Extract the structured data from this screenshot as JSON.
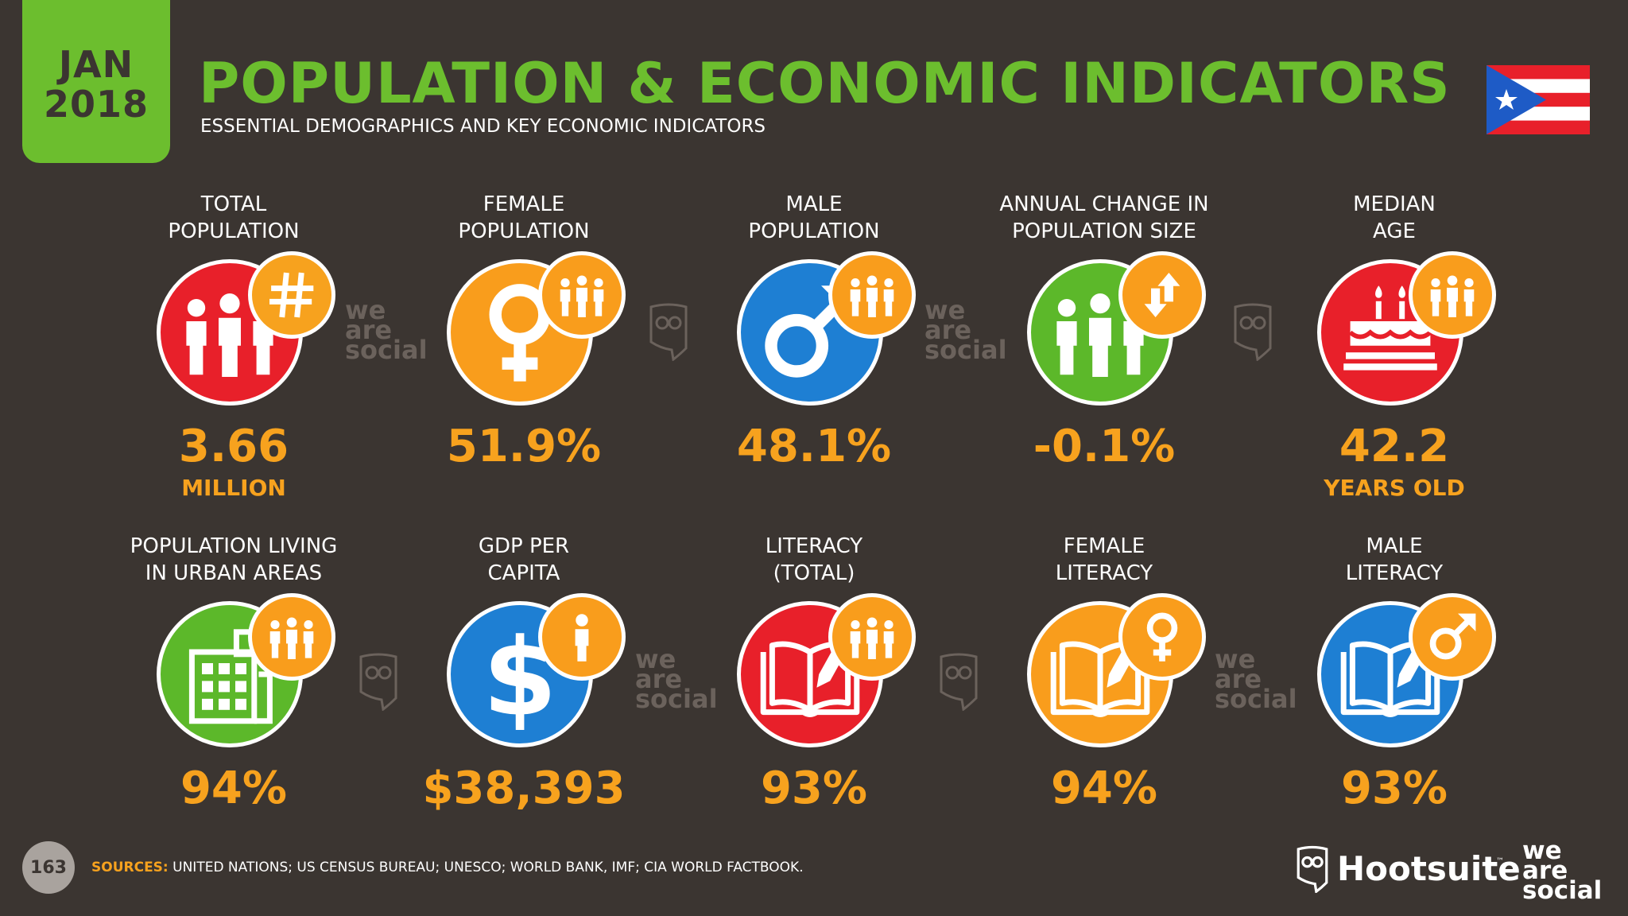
{
  "header": {
    "date_month": "JAN",
    "date_year": "2018",
    "title": "POPULATION & ECONOMIC INDICATORS",
    "subtitle": "ESSENTIAL DEMOGRAPHICS AND KEY ECONOMIC INDICATORS",
    "flag_icon": "puerto-rico-flag-icon"
  },
  "colors": {
    "background": "#3b3531",
    "accent_green": "#6cbe2e",
    "value_orange": "#f7a21e",
    "red": "#e8202a",
    "orange": "#f99d1c",
    "blue": "#1e7fd3",
    "green": "#5cb82a"
  },
  "row1": [
    {
      "label_line1": "TOTAL",
      "label_line2": "POPULATION",
      "value": "3.66",
      "unit": "MILLION",
      "color": "#e8202a",
      "icon": "people-icon",
      "badge_icon": "hash-icon"
    },
    {
      "label_line1": "FEMALE",
      "label_line2": "POPULATION",
      "value": "51.9%",
      "unit": "",
      "color": "#f99d1c",
      "icon": "female-symbol-icon",
      "badge_icon": "people-icon"
    },
    {
      "label_line1": "MALE",
      "label_line2": "POPULATION",
      "value": "48.1%",
      "unit": "",
      "color": "#1e7fd3",
      "icon": "male-symbol-icon",
      "badge_icon": "people-icon"
    },
    {
      "label_line1": "ANNUAL CHANGE IN",
      "label_line2": "POPULATION SIZE",
      "value": "-0.1%",
      "unit": "",
      "color": "#5cb82a",
      "icon": "people-icon",
      "badge_icon": "up-down-arrows-icon"
    },
    {
      "label_line1": "MEDIAN",
      "label_line2": "AGE",
      "value": "42.2",
      "unit": "YEARS OLD",
      "color": "#e8202a",
      "icon": "birthday-cake-icon",
      "badge_icon": "people-icon"
    }
  ],
  "row2": [
    {
      "label_line1": "POPULATION LIVING",
      "label_line2": "IN URBAN AREAS",
      "value": "94%",
      "color": "#5cb82a",
      "icon": "building-icon",
      "badge_icon": "people-icon"
    },
    {
      "label_line1": "GDP PER",
      "label_line2": "CAPITA",
      "value": "$38,393",
      "color": "#1e7fd3",
      "icon": "dollar-icon",
      "badge_icon": "person-icon"
    },
    {
      "label_line1": "LITERACY",
      "label_line2": "(TOTAL)",
      "value": "93%",
      "color": "#e8202a",
      "icon": "book-pencil-icon",
      "badge_icon": "people-icon"
    },
    {
      "label_line1": "FEMALE",
      "label_line2": "LITERACY",
      "value": "94%",
      "color": "#f99d1c",
      "icon": "book-pencil-icon",
      "badge_icon": "female-symbol-icon"
    },
    {
      "label_line1": "MALE",
      "label_line2": "LITERACY",
      "value": "93%",
      "color": "#1e7fd3",
      "icon": "book-pencil-icon",
      "badge_icon": "male-symbol-icon"
    }
  ],
  "watermark": {
    "line1": "we",
    "line2": "are",
    "line3": "social"
  },
  "footer": {
    "page_number": "163",
    "sources_label": "SOURCES:",
    "sources_text": "UNITED NATIONS; US CENSUS BUREAU; UNESCO; WORLD BANK, IMF; CIA WORLD FACTBOOK.",
    "hootsuite": "Hootsuite",
    "trademark": "™",
    "was_line1": "we",
    "was_line2": "are",
    "was_line3": "social"
  }
}
